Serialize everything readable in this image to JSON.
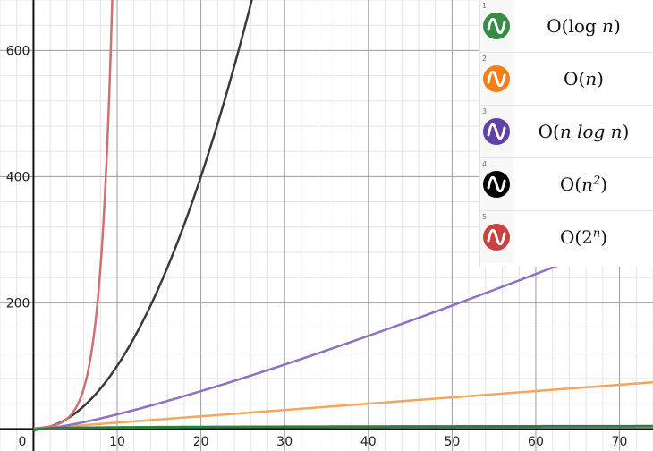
{
  "chart_data": {
    "type": "line",
    "x_range": [
      -4,
      74
    ],
    "y_range": [
      -35,
      680
    ],
    "x_ticks": [
      0,
      10,
      20,
      30,
      40,
      50,
      60,
      70
    ],
    "y_ticks": [
      200,
      400,
      600
    ],
    "origin_label": "0",
    "grid": true,
    "legend": "top-right expression list",
    "series": [
      {
        "index": "1",
        "expression": "O(log n)",
        "function": "log",
        "color": "#388c46"
      },
      {
        "index": "2",
        "expression": "O(n)",
        "function": "n",
        "color": "#fa7e19"
      },
      {
        "index": "3",
        "expression": "O(n log n)",
        "function": "nlogn",
        "color": "#6042a6"
      },
      {
        "index": "4",
        "expression": "O(n^2)",
        "function": "n2",
        "color": "#000000"
      },
      {
        "index": "5",
        "expression": "O(2^n)",
        "function": "2n",
        "color": "#c74440"
      }
    ]
  },
  "expressions": [
    {
      "index": "1",
      "prefix": "O(",
      "body": "log",
      "var": "n",
      "sup": "",
      "suffix": ")",
      "color": "#388c46",
      "icon": "wave-icon"
    },
    {
      "index": "2",
      "prefix": "O(",
      "body": "",
      "var": "n",
      "sup": "",
      "suffix": ")",
      "color": "#fa7e19",
      "icon": "wave-icon"
    },
    {
      "index": "3",
      "prefix": "O(",
      "body": "n log",
      "var": "n",
      "sup": "",
      "suffix": ")",
      "color": "#6042a6",
      "icon": "wave-icon"
    },
    {
      "index": "4",
      "prefix": "O(",
      "body": "",
      "var": "n",
      "sup": "2",
      "suffix": ")",
      "color": "#000000",
      "icon": "wave-icon"
    },
    {
      "index": "5",
      "prefix": "O(",
      "body": "",
      "var": "2",
      "sup": "n",
      "suffix": ")",
      "color": "#c74440",
      "icon": "wave-icon"
    }
  ]
}
